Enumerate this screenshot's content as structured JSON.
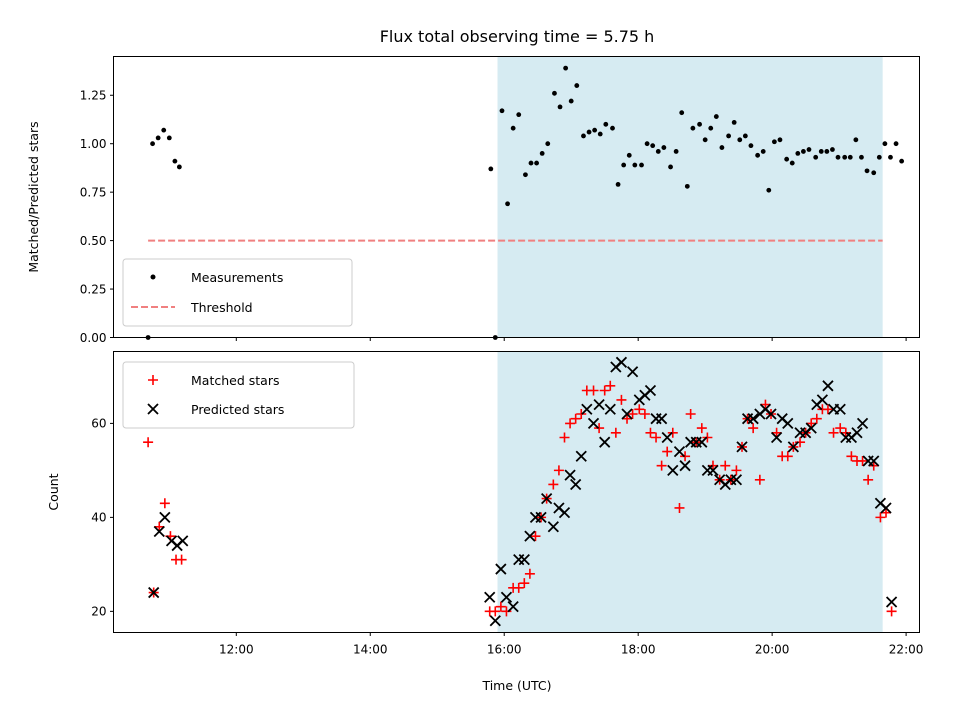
{
  "chart_data": [
    {
      "type": "scatter",
      "title": "Flux total observing time = 5.75 h",
      "xlabel": "",
      "ylabel": "Matched/Predicted stars",
      "xlim": [
        "10:10",
        "22:12"
      ],
      "ylim": [
        0,
        1.45
      ],
      "yticks": [
        "0.00",
        "0.25",
        "0.50",
        "0.75",
        "1.00",
        "1.25"
      ],
      "grid": false,
      "legend": "lower-left",
      "shaded_span": [
        "15:54",
        "21:39"
      ],
      "shade_color": "#add8e6",
      "series": [
        {
          "name": "Measurements",
          "marker": "dot",
          "color": "#000000",
          "points": [
            [
              "10:41",
              0.0
            ],
            [
              "10:45",
              1.0
            ],
            [
              "10:50",
              1.03
            ],
            [
              "10:55",
              1.07
            ],
            [
              "11:00",
              1.03
            ],
            [
              "11:05",
              0.91
            ],
            [
              "11:09",
              0.88
            ],
            [
              "15:48",
              0.87
            ],
            [
              "15:52",
              0.0
            ],
            [
              "15:58",
              1.17
            ],
            [
              "16:03",
              0.69
            ],
            [
              "16:08",
              1.08
            ],
            [
              "16:13",
              1.15
            ],
            [
              "16:19",
              0.84
            ],
            [
              "16:24",
              0.9
            ],
            [
              "16:29",
              0.9
            ],
            [
              "16:34",
              0.95
            ],
            [
              "16:39",
              1.0
            ],
            [
              "16:45",
              1.26
            ],
            [
              "16:50",
              1.19
            ],
            [
              "16:55",
              1.39
            ],
            [
              "17:00",
              1.22
            ],
            [
              "17:05",
              1.3
            ],
            [
              "17:11",
              1.04
            ],
            [
              "17:16",
              1.06
            ],
            [
              "17:21",
              1.07
            ],
            [
              "17:26",
              1.05
            ],
            [
              "17:31",
              1.1
            ],
            [
              "17:37",
              1.08
            ],
            [
              "17:42",
              0.79
            ],
            [
              "17:47",
              0.89
            ],
            [
              "17:52",
              0.94
            ],
            [
              "17:57",
              0.89
            ],
            [
              "18:03",
              0.89
            ],
            [
              "18:08",
              1.0
            ],
            [
              "18:13",
              0.99
            ],
            [
              "18:18",
              0.96
            ],
            [
              "18:23",
              0.98
            ],
            [
              "18:29",
              0.88
            ],
            [
              "18:34",
              0.96
            ],
            [
              "18:39",
              1.16
            ],
            [
              "18:44",
              0.78
            ],
            [
              "18:49",
              1.08
            ],
            [
              "18:55",
              1.1
            ],
            [
              "19:00",
              1.02
            ],
            [
              "19:05",
              1.08
            ],
            [
              "19:10",
              1.14
            ],
            [
              "19:15",
              0.98
            ],
            [
              "19:21",
              1.04
            ],
            [
              "19:26",
              1.11
            ],
            [
              "19:31",
              1.02
            ],
            [
              "19:36",
              1.04
            ],
            [
              "19:41",
              0.99
            ],
            [
              "19:47",
              0.94
            ],
            [
              "19:52",
              0.96
            ],
            [
              "19:57",
              0.76
            ],
            [
              "20:02",
              1.01
            ],
            [
              "20:07",
              1.02
            ],
            [
              "20:13",
              0.92
            ],
            [
              "20:18",
              0.9
            ],
            [
              "20:23",
              0.95
            ],
            [
              "20:28",
              0.96
            ],
            [
              "20:33",
              0.97
            ],
            [
              "20:39",
              0.93
            ],
            [
              "20:44",
              0.96
            ],
            [
              "20:49",
              0.96
            ],
            [
              "20:54",
              0.97
            ],
            [
              "20:59",
              0.93
            ],
            [
              "21:05",
              0.93
            ],
            [
              "21:10",
              0.93
            ],
            [
              "21:15",
              1.02
            ],
            [
              "21:20",
              0.93
            ],
            [
              "21:25",
              0.86
            ],
            [
              "21:31",
              0.85
            ],
            [
              "21:36",
              0.93
            ],
            [
              "21:41",
              1.0
            ],
            [
              "21:46",
              0.93
            ],
            [
              "21:51",
              1.0
            ],
            [
              "21:56",
              0.91
            ]
          ]
        },
        {
          "name": "Threshold",
          "marker": "dashed-line",
          "color": "#f08080",
          "points": [
            [
              "10:41",
              0.5
            ],
            [
              "21:39",
              0.5
            ]
          ]
        }
      ]
    },
    {
      "type": "scatter",
      "title": "",
      "xlabel": "Time (UTC)",
      "ylabel": "Count",
      "xlim": [
        "10:10",
        "22:12"
      ],
      "ylim": [
        15.5,
        75.3
      ],
      "yticks": [
        "20",
        "40",
        "60"
      ],
      "xticks": [
        "12:00",
        "14:00",
        "16:00",
        "18:00",
        "20:00",
        "22:00"
      ],
      "grid": false,
      "legend": "top-left",
      "shaded_span": [
        "15:54",
        "21:39"
      ],
      "shade_color": "#add8e6",
      "series": [
        {
          "name": "Matched stars",
          "marker": "plus",
          "color": "#ff0000",
          "points": [
            [
              "10:41",
              56
            ],
            [
              "10:46",
              24
            ],
            [
              "10:51",
              38
            ],
            [
              "10:56",
              43
            ],
            [
              "11:01",
              36
            ],
            [
              "11:06",
              31
            ],
            [
              "11:11",
              31
            ],
            [
              "15:47",
              20
            ],
            [
              "15:52",
              20
            ],
            [
              "15:57",
              21
            ],
            [
              "16:02",
              20
            ],
            [
              "16:08",
              25
            ],
            [
              "16:13",
              25
            ],
            [
              "16:18",
              26
            ],
            [
              "16:23",
              28
            ],
            [
              "16:28",
              36
            ],
            [
              "16:33",
              40
            ],
            [
              "16:38",
              44
            ],
            [
              "16:44",
              47
            ],
            [
              "16:49",
              50
            ],
            [
              "16:54",
              57
            ],
            [
              "16:59",
              60
            ],
            [
              "17:04",
              61
            ],
            [
              "17:09",
              62
            ],
            [
              "17:14",
              67
            ],
            [
              "17:20",
              67
            ],
            [
              "17:25",
              59
            ],
            [
              "17:30",
              67
            ],
            [
              "17:35",
              68
            ],
            [
              "17:40",
              58
            ],
            [
              "17:45",
              65
            ],
            [
              "17:50",
              61
            ],
            [
              "17:55",
              62
            ],
            [
              "18:01",
              63
            ],
            [
              "18:06",
              62
            ],
            [
              "18:11",
              58
            ],
            [
              "18:16",
              57
            ],
            [
              "18:21",
              51
            ],
            [
              "18:26",
              54
            ],
            [
              "18:31",
              58
            ],
            [
              "18:37",
              42
            ],
            [
              "18:42",
              53
            ],
            [
              "18:47",
              62
            ],
            [
              "18:52",
              56
            ],
            [
              "18:57",
              59
            ],
            [
              "19:02",
              57
            ],
            [
              "19:07",
              51
            ],
            [
              "19:13",
              48
            ],
            [
              "19:18",
              51
            ],
            [
              "19:23",
              48
            ],
            [
              "19:28",
              50
            ],
            [
              "19:33",
              55
            ],
            [
              "19:38",
              61
            ],
            [
              "19:43",
              59
            ],
            [
              "19:49",
              48
            ],
            [
              "19:54",
              64
            ],
            [
              "19:59",
              62
            ],
            [
              "20:04",
              58
            ],
            [
              "20:09",
              53
            ],
            [
              "20:14",
              53
            ],
            [
              "20:19",
              55
            ],
            [
              "20:25",
              56
            ],
            [
              "20:30",
              58
            ],
            [
              "20:35",
              60
            ],
            [
              "20:40",
              61
            ],
            [
              "20:45",
              63
            ],
            [
              "20:50",
              63
            ],
            [
              "20:55",
              58
            ],
            [
              "21:01",
              59
            ],
            [
              "21:06",
              58
            ],
            [
              "21:11",
              53
            ],
            [
              "21:16",
              52
            ],
            [
              "21:21",
              52
            ],
            [
              "21:26",
              48
            ],
            [
              "21:31",
              51
            ],
            [
              "21:37",
              40
            ],
            [
              "21:42",
              41
            ],
            [
              "21:47",
              20
            ]
          ]
        },
        {
          "name": "Predicted stars",
          "marker": "x",
          "color": "#000000",
          "points": [
            [
              "10:46",
              24
            ],
            [
              "10:51",
              37
            ],
            [
              "10:56",
              40
            ],
            [
              "11:02",
              35
            ],
            [
              "11:07",
              34
            ],
            [
              "11:12",
              35
            ],
            [
              "15:47",
              23
            ],
            [
              "15:52",
              18
            ],
            [
              "15:57",
              29
            ],
            [
              "16:02",
              23
            ],
            [
              "16:08",
              21
            ],
            [
              "16:13",
              31
            ],
            [
              "16:18",
              31
            ],
            [
              "16:23",
              36
            ],
            [
              "16:28",
              40
            ],
            [
              "16:33",
              40
            ],
            [
              "16:38",
              44
            ],
            [
              "16:44",
              38
            ],
            [
              "16:49",
              42
            ],
            [
              "16:54",
              41
            ],
            [
              "16:59",
              49
            ],
            [
              "17:04",
              47
            ],
            [
              "17:09",
              53
            ],
            [
              "17:14",
              63
            ],
            [
              "17:20",
              60
            ],
            [
              "17:25",
              64
            ],
            [
              "17:30",
              56
            ],
            [
              "17:35",
              63
            ],
            [
              "17:40",
              72
            ],
            [
              "17:45",
              73
            ],
            [
              "17:50",
              62
            ],
            [
              "17:55",
              71
            ],
            [
              "18:01",
              65
            ],
            [
              "18:06",
              66
            ],
            [
              "18:11",
              67
            ],
            [
              "18:16",
              61
            ],
            [
              "18:21",
              61
            ],
            [
              "18:26",
              57
            ],
            [
              "18:31",
              50
            ],
            [
              "18:37",
              54
            ],
            [
              "18:42",
              51
            ],
            [
              "18:47",
              56
            ],
            [
              "18:52",
              56
            ],
            [
              "18:57",
              56
            ],
            [
              "19:02",
              50
            ],
            [
              "19:07",
              50
            ],
            [
              "19:13",
              48
            ],
            [
              "19:18",
              47
            ],
            [
              "19:23",
              48
            ],
            [
              "19:28",
              48
            ],
            [
              "19:33",
              55
            ],
            [
              "19:38",
              61
            ],
            [
              "19:43",
              61
            ],
            [
              "19:49",
              62
            ],
            [
              "19:54",
              63
            ],
            [
              "19:59",
              62
            ],
            [
              "20:04",
              57
            ],
            [
              "20:09",
              61
            ],
            [
              "20:14",
              60
            ],
            [
              "20:19",
              55
            ],
            [
              "20:25",
              58
            ],
            [
              "20:30",
              58
            ],
            [
              "20:35",
              59
            ],
            [
              "20:40",
              64
            ],
            [
              "20:45",
              65
            ],
            [
              "20:50",
              68
            ],
            [
              "20:55",
              63
            ],
            [
              "21:01",
              63
            ],
            [
              "21:06",
              57
            ],
            [
              "21:11",
              57
            ],
            [
              "21:16",
              58
            ],
            [
              "21:21",
              60
            ],
            [
              "21:26",
              52
            ],
            [
              "21:31",
              52
            ],
            [
              "21:37",
              43
            ],
            [
              "21:42",
              42
            ],
            [
              "21:47",
              22
            ]
          ]
        }
      ]
    }
  ]
}
